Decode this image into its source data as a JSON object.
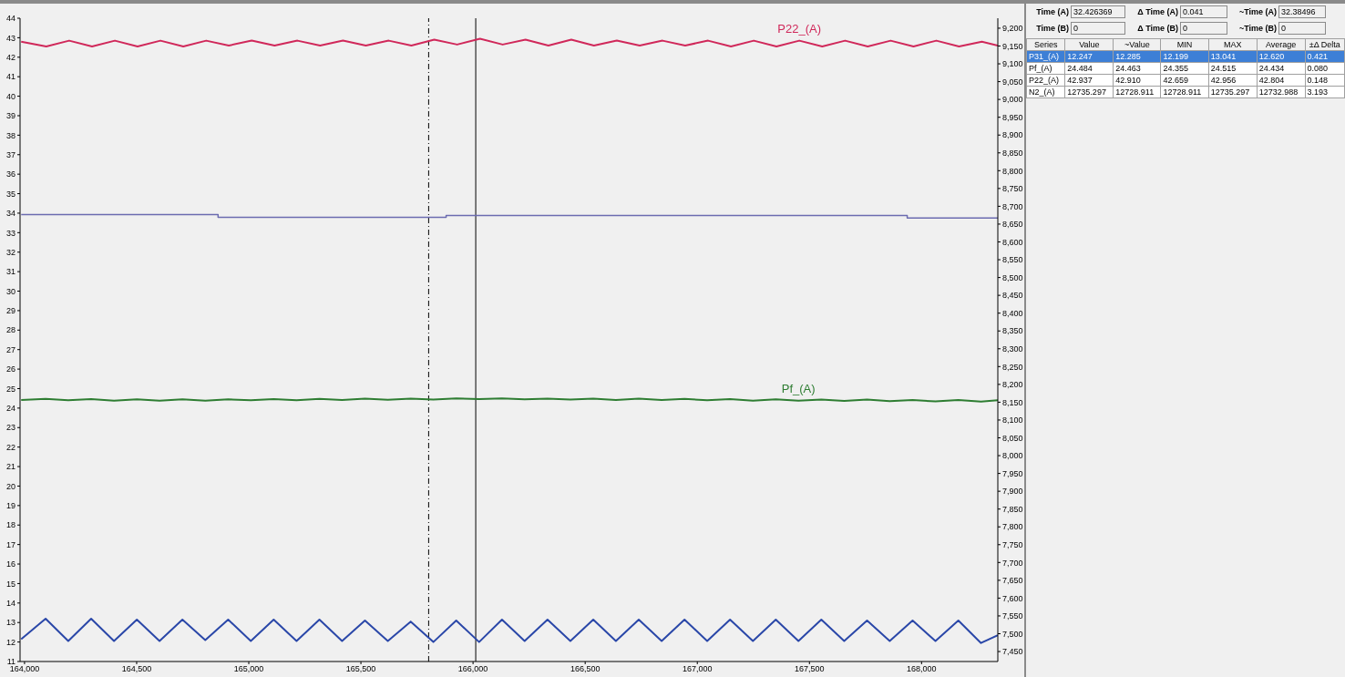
{
  "chart_data": [
    {
      "type": "line",
      "xlim": [
        163980,
        168340
      ],
      "xticks": [
        {
          "value": 164000,
          "label": "164,000"
        },
        {
          "value": 164500,
          "label": "164,500"
        },
        {
          "value": 165000,
          "label": "165,000"
        },
        {
          "value": 165500,
          "label": "165,500"
        },
        {
          "value": 166000,
          "label": "166,000"
        },
        {
          "value": 166500,
          "label": "166,500"
        },
        {
          "value": 167000,
          "label": "167,000"
        },
        {
          "value": 167500,
          "label": "167,500"
        },
        {
          "value": 168000,
          "label": "168,000"
        }
      ],
      "ylim": [
        11,
        44
      ],
      "yticks": [
        11,
        12,
        13,
        14,
        15,
        16,
        17,
        18,
        19,
        20,
        21,
        22,
        23,
        24,
        25,
        26,
        27,
        28,
        29,
        30,
        31,
        32,
        33,
        34,
        35,
        36,
        37,
        38,
        39,
        40,
        41,
        42,
        43,
        44
      ],
      "y2lim": [
        7422,
        9228
      ],
      "y2ticks": [
        {
          "value": 7450,
          "label": "7,450"
        },
        {
          "value": 7500,
          "label": "7,500"
        },
        {
          "value": 7550,
          "label": "7,550"
        },
        {
          "value": 7600,
          "label": "7,600"
        },
        {
          "value": 7650,
          "label": "7,650"
        },
        {
          "value": 7700,
          "label": "7,700"
        },
        {
          "value": 7750,
          "label": "7,750"
        },
        {
          "value": 7800,
          "label": "7,800"
        },
        {
          "value": 7850,
          "label": "7,850"
        },
        {
          "value": 7900,
          "label": "7,900"
        },
        {
          "value": 7950,
          "label": "7,950"
        },
        {
          "value": 8000,
          "label": "8,000"
        },
        {
          "value": 8050,
          "label": "8,050"
        },
        {
          "value": 8100,
          "label": "8,100"
        },
        {
          "value": 8150,
          "label": "8,150"
        },
        {
          "value": 8200,
          "label": "8,200"
        },
        {
          "value": 8250,
          "label": "8,250"
        },
        {
          "value": 8300,
          "label": "8,300"
        },
        {
          "value": 8350,
          "label": "8,350"
        },
        {
          "value": 8400,
          "label": "8,400"
        },
        {
          "value": 8450,
          "label": "8,450"
        },
        {
          "value": 8500,
          "label": "8,500"
        },
        {
          "value": 8550,
          "label": "8,550"
        },
        {
          "value": 8600,
          "label": "8,600"
        },
        {
          "value": 8650,
          "label": "8,650"
        },
        {
          "value": 8700,
          "label": "8,700"
        },
        {
          "value": 8750,
          "label": "8,750"
        },
        {
          "value": 8800,
          "label": "8,800"
        },
        {
          "value": 8850,
          "label": "8,850"
        },
        {
          "value": 8900,
          "label": "8,900"
        },
        {
          "value": 8950,
          "label": "8,950"
        },
        {
          "value": 9000,
          "label": "9,000"
        },
        {
          "value": 9050,
          "label": "9,050"
        },
        {
          "value": 9100,
          "label": "9,100"
        },
        {
          "value": 9150,
          "label": "9,150"
        },
        {
          "value": 9200,
          "label": "9,200"
        }
      ],
      "ref_lines": [
        {
          "axis": "x",
          "value": 165802,
          "color": "#000000",
          "line_style": "dashed"
        },
        {
          "axis": "x",
          "value": 166012,
          "color": "#000000",
          "line_style": "solid"
        }
      ],
      "series": [
        {
          "name": "P22_(A)",
          "color": "#d0285a",
          "x": [
            163985,
            164097,
            164199,
            164301,
            164403,
            164504,
            164606,
            164708,
            164810,
            164911,
            165013,
            165115,
            165217,
            165318,
            165420,
            165522,
            165624,
            165725,
            165827,
            165929,
            166031,
            166132,
            166234,
            166336,
            166438,
            166539,
            166641,
            166743,
            166845,
            166946,
            167048,
            167150,
            167252,
            167353,
            167455,
            167557,
            167659,
            167760,
            167862,
            167964,
            168066,
            168167,
            168269,
            168340
          ],
          "values": [
            42.8,
            42.55,
            42.85,
            42.55,
            42.85,
            42.55,
            42.85,
            42.55,
            42.85,
            42.6,
            42.85,
            42.6,
            42.85,
            42.6,
            42.85,
            42.6,
            42.85,
            42.6,
            42.9,
            42.65,
            42.95,
            42.65,
            42.9,
            42.6,
            42.9,
            42.6,
            42.85,
            42.6,
            42.85,
            42.6,
            42.85,
            42.55,
            42.85,
            42.55,
            42.85,
            42.55,
            42.85,
            42.55,
            42.85,
            42.55,
            42.85,
            42.55,
            42.8,
            42.6
          ]
        },
        {
          "type": "step",
          "axis": "y2",
          "color": "#6b6bb0",
          "x": [
            163985,
            164863,
            165880,
            167936,
            168340
          ],
          "values": [
            8677,
            8669,
            8674,
            8667,
            8667
          ]
        },
        {
          "name": "Pf_(A)",
          "color": "#2e7d32",
          "x": [
            163985,
            164094,
            164195,
            164297,
            164399,
            164501,
            164602,
            164704,
            164806,
            164908,
            165009,
            165111,
            165213,
            165315,
            165416,
            165518,
            165620,
            165722,
            165823,
            165925,
            166027,
            166129,
            166230,
            166332,
            166434,
            166536,
            166637,
            166739,
            166841,
            166943,
            167044,
            167146,
            167248,
            167350,
            167451,
            167553,
            167655,
            167757,
            167858,
            167960,
            168062,
            168164,
            168265,
            168340
          ],
          "values": [
            24.42,
            24.47,
            24.4,
            24.46,
            24.38,
            24.45,
            24.38,
            24.45,
            24.38,
            24.45,
            24.4,
            24.46,
            24.4,
            24.47,
            24.42,
            24.48,
            24.43,
            24.49,
            24.44,
            24.5,
            24.46,
            24.5,
            24.45,
            24.49,
            24.44,
            24.48,
            24.42,
            24.48,
            24.42,
            24.47,
            24.4,
            24.46,
            24.38,
            24.45,
            24.38,
            24.44,
            24.37,
            24.44,
            24.36,
            24.42,
            24.34,
            24.42,
            24.33,
            24.4
          ]
        },
        {
          "color": "#2a47a8",
          "x": [
            163985,
            164094,
            164195,
            164297,
            164399,
            164501,
            164602,
            164704,
            164806,
            164908,
            165009,
            165111,
            165213,
            165315,
            165416,
            165518,
            165620,
            165722,
            165823,
            165925,
            166027,
            166129,
            166230,
            166332,
            166434,
            166536,
            166637,
            166739,
            166841,
            166943,
            167044,
            167146,
            167248,
            167350,
            167451,
            167553,
            167655,
            167757,
            167858,
            167960,
            168062,
            168164,
            168265,
            168340
          ],
          "values": [
            12.15,
            13.2,
            12.05,
            13.2,
            12.05,
            13.15,
            12.05,
            13.15,
            12.1,
            13.15,
            12.05,
            13.15,
            12.05,
            13.15,
            12.05,
            13.1,
            12.05,
            13.05,
            12.0,
            13.1,
            12.0,
            13.15,
            12.05,
            13.15,
            12.05,
            13.15,
            12.05,
            13.15,
            12.05,
            13.15,
            12.05,
            13.15,
            12.05,
            13.15,
            12.05,
            13.15,
            12.05,
            13.1,
            12.05,
            13.1,
            12.05,
            13.1,
            11.95,
            12.35
          ]
        }
      ]
    },
    {
      "type": "other",
      "annotations": [
        "Time (A)",
        "32.426369",
        "Δ Time (A)",
        "0.041",
        "~Time (A)",
        "32.38496",
        "Time (B)",
        "0",
        "Δ Time (B)",
        "0",
        "~Time (B)",
        "0",
        "Series",
        "Value",
        "~Value",
        "MIN",
        "MAX",
        "Average",
        "±Δ Delta",
        "P31_(A)",
        "12.247",
        "12.285",
        "12.199",
        "13.041",
        "12.620",
        "0.421",
        "Pf_(A)",
        "24.484",
        "24.463",
        "24.355",
        "24.515",
        "24.434",
        "0.080",
        "P22_(A)",
        "42.937",
        "42.910",
        "42.659",
        "42.956",
        "42.804",
        "0.148",
        "N2_(A)",
        "12735.297",
        "12728.911",
        "12728.911",
        "12735.297",
        "12732.988",
        "3.193"
      ]
    }
  ]
}
